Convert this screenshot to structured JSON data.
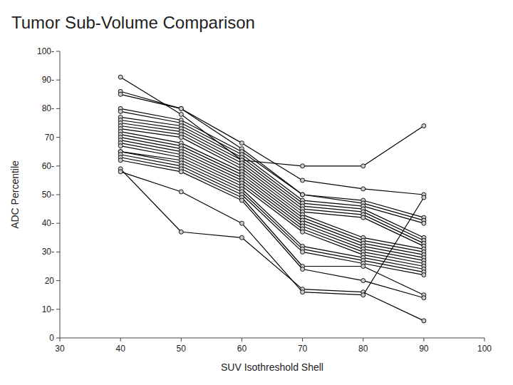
{
  "chart_data": {
    "type": "line",
    "title": "Tumor Sub-Volume Comparison",
    "x_label": "SUV Isothreshold Shell",
    "y_label": "ADC Percentile",
    "xlim": [
      30,
      100
    ],
    "ylim": [
      0,
      100
    ],
    "xticks": [
      30,
      40,
      50,
      60,
      70,
      80,
      90,
      100
    ],
    "yticks": [
      0,
      {
        "value": 10,
        "label": "10-"
      },
      20,
      {
        "value": 30,
        "label": "30-"
      },
      {
        "value": 40,
        "label": "40-"
      },
      {
        "value": 50,
        "label": "50-"
      },
      {
        "value": 60,
        "label": "60-"
      },
      70,
      {
        "value": 80,
        "label": "80-"
      },
      {
        "value": 90,
        "label": "90-"
      },
      {
        "value": 100,
        "label": "100-"
      }
    ],
    "grid": false,
    "x": [
      40,
      50,
      60,
      70,
      80,
      90
    ],
    "series": [
      {
        "color": "#000000",
        "marker": "circle",
        "values": [
          91,
          78,
          62,
          60,
          60,
          74
        ]
      },
      {
        "color": "#000000",
        "marker": "circle",
        "values": [
          86,
          80,
          68,
          55,
          52,
          50
        ]
      },
      {
        "color": "#000000",
        "marker": "circle",
        "values": [
          85,
          80,
          66,
          50,
          48,
          42
        ]
      },
      {
        "color": "#000000",
        "marker": "circle",
        "values": [
          80,
          76,
          65,
          50,
          47,
          41
        ]
      },
      {
        "color": "#000000",
        "marker": "circle",
        "values": [
          79,
          75,
          64,
          48,
          46,
          40
        ]
      },
      {
        "color": "#000000",
        "marker": "circle",
        "values": [
          77,
          74,
          63,
          47,
          45,
          35
        ]
      },
      {
        "color": "#000000",
        "marker": "circle",
        "values": [
          76,
          73,
          62,
          46,
          44,
          34
        ]
      },
      {
        "color": "#000000",
        "marker": "circle",
        "values": [
          75,
          72,
          61,
          45,
          43,
          33
        ]
      },
      {
        "color": "#000000",
        "marker": "circle",
        "values": [
          74,
          71,
          60,
          44,
          42,
          32
        ]
      },
      {
        "color": "#000000",
        "marker": "circle",
        "values": [
          73,
          70,
          59,
          43,
          35,
          31
        ]
      },
      {
        "color": "#000000",
        "marker": "circle",
        "values": [
          72,
          68,
          58,
          42,
          34,
          30
        ]
      },
      {
        "color": "#000000",
        "marker": "circle",
        "values": [
          71,
          67,
          57,
          41,
          33,
          29
        ]
      },
      {
        "color": "#000000",
        "marker": "circle",
        "values": [
          70,
          66,
          56,
          40,
          32,
          28
        ]
      },
      {
        "color": "#000000",
        "marker": "circle",
        "values": [
          69,
          65,
          55,
          39,
          31,
          27
        ]
      },
      {
        "color": "#000000",
        "marker": "circle",
        "values": [
          68,
          64,
          54,
          38,
          30,
          26
        ]
      },
      {
        "color": "#000000",
        "marker": "circle",
        "values": [
          67,
          63,
          53,
          37,
          29,
          25
        ]
      },
      {
        "color": "#000000",
        "marker": "circle",
        "values": [
          65,
          62,
          52,
          32,
          28,
          24
        ]
      },
      {
        "color": "#000000",
        "marker": "circle",
        "values": [
          65,
          61,
          51,
          31,
          27,
          23
        ]
      },
      {
        "color": "#000000",
        "marker": "circle",
        "values": [
          64,
          60,
          50,
          30,
          26,
          22
        ]
      },
      {
        "color": "#000000",
        "marker": "circle",
        "values": [
          63,
          59,
          49,
          25,
          25,
          15
        ]
      },
      {
        "color": "#000000",
        "marker": "circle",
        "values": [
          62,
          58,
          48,
          24,
          20,
          14
        ]
      },
      {
        "color": "#000000",
        "marker": "circle",
        "values": [
          59,
          37,
          35,
          17,
          16,
          6
        ]
      },
      {
        "color": "#000000",
        "marker": "circle",
        "values": [
          58,
          51,
          40,
          16,
          15,
          49
        ]
      }
    ]
  }
}
